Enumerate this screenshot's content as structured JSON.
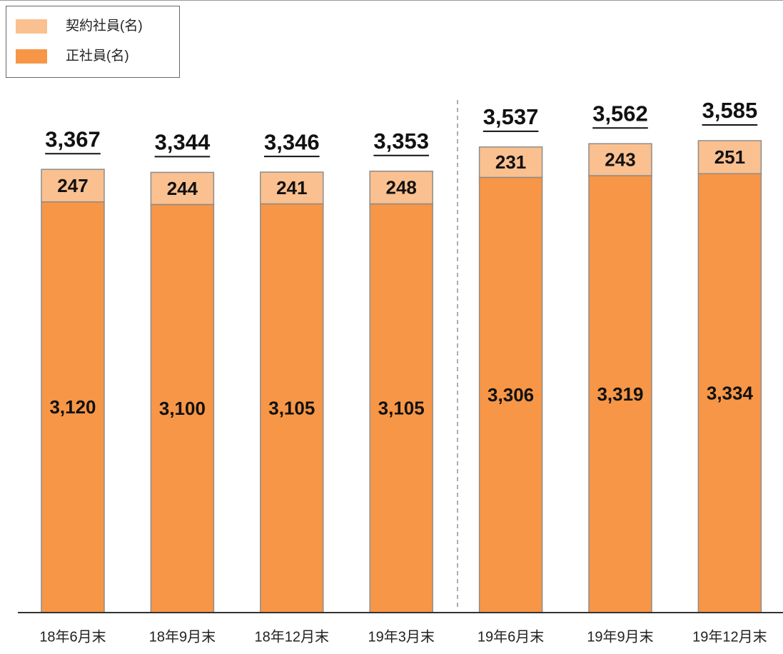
{
  "chart_data": {
    "type": "stacked-bar",
    "categories": [
      "18年6月末",
      "18年9月末",
      "18年12月末",
      "19年3月末",
      "19年6月末",
      "19年9月末",
      "19年12月末"
    ],
    "series": [
      {
        "name": "正社員(名)",
        "color": "#f79646",
        "values": [
          3120,
          3100,
          3105,
          3105,
          3306,
          3319,
          3334
        ],
        "value_labels": [
          "3,120",
          "3,100",
          "3,105",
          "3,105",
          "3,306",
          "3,319",
          "3,334"
        ]
      },
      {
        "name": "契約社員(名)",
        "color": "#fac090",
        "values": [
          247,
          244,
          241,
          248,
          231,
          243,
          251
        ]
      }
    ],
    "totals": [
      3367,
      3344,
      3346,
      3353,
      3537,
      3562,
      3585
    ],
    "total_labels": [
      "3,367",
      "3,344",
      "3,346",
      "3,353",
      "3,537",
      "3,562",
      "3,585"
    ]
  }
}
